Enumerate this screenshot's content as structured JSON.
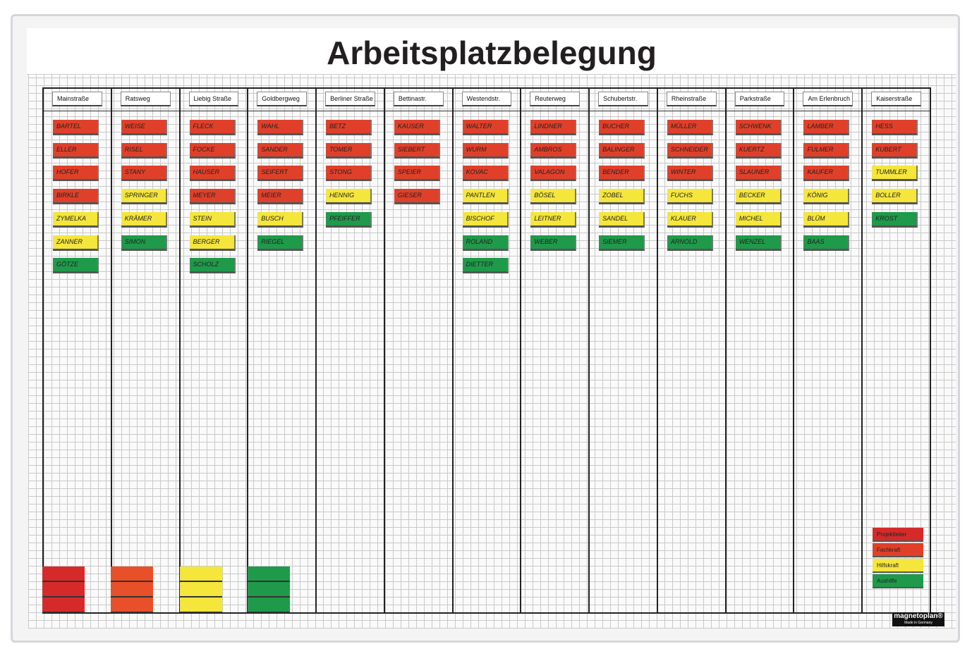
{
  "title": "Arbeitsplatzbelegung",
  "columns": [
    {
      "header": "Mainstraße",
      "cards": [
        {
          "name": "Bartel",
          "color": "#e0402a"
        },
        {
          "name": "Eller",
          "color": "#e0402a"
        },
        {
          "name": "Hofer",
          "color": "#e0402a"
        },
        {
          "name": "Birkle",
          "color": "#e0402a"
        },
        {
          "name": "Zymelka",
          "color": "#f5e63c"
        },
        {
          "name": "Zanner",
          "color": "#f5e63c"
        },
        {
          "name": "Götze",
          "color": "#1f9a4a"
        }
      ]
    },
    {
      "header": "Ratsweg",
      "cards": [
        {
          "name": "Weise",
          "color": "#e0402a"
        },
        {
          "name": "Risel",
          "color": "#e0402a"
        },
        {
          "name": "Stany",
          "color": "#e0402a"
        },
        {
          "name": "Springer",
          "color": "#f5e63c"
        },
        {
          "name": "Krämer",
          "color": "#f5e63c"
        },
        {
          "name": "Simon",
          "color": "#1f9a4a"
        }
      ]
    },
    {
      "header": "Liebig Straße",
      "cards": [
        {
          "name": "Fleck",
          "color": "#e0402a"
        },
        {
          "name": "Focke",
          "color": "#e0402a"
        },
        {
          "name": "Hauser",
          "color": "#e0402a"
        },
        {
          "name": "Meyer",
          "color": "#e0402a"
        },
        {
          "name": "Stein",
          "color": "#f5e63c"
        },
        {
          "name": "Berger",
          "color": "#f5e63c"
        },
        {
          "name": "Scholz",
          "color": "#1f9a4a"
        }
      ]
    },
    {
      "header": "Goldbergweg",
      "cards": [
        {
          "name": "Wahl",
          "color": "#e0402a"
        },
        {
          "name": "Sander",
          "color": "#e0402a"
        },
        {
          "name": "Seifert",
          "color": "#e0402a"
        },
        {
          "name": "Meier",
          "color": "#e0402a"
        },
        {
          "name": "Busch",
          "color": "#f5e63c"
        },
        {
          "name": "Riegel",
          "color": "#1f9a4a"
        }
      ]
    },
    {
      "header": "Berliner Straße",
      "cards": [
        {
          "name": "Betz",
          "color": "#e0402a"
        },
        {
          "name": "Tomer",
          "color": "#e0402a"
        },
        {
          "name": "Stong",
          "color": "#e0402a"
        },
        {
          "name": "Hennig",
          "color": "#f5e63c"
        },
        {
          "name": "Pfeiffer",
          "color": "#1f9a4a"
        }
      ]
    },
    {
      "header": "Bettinastr.",
      "cards": [
        {
          "name": "Kauser",
          "color": "#e0402a"
        },
        {
          "name": "Siebert",
          "color": "#e0402a"
        },
        {
          "name": "Speier",
          "color": "#e0402a"
        },
        {
          "name": "Gieser",
          "color": "#e0402a"
        }
      ]
    },
    {
      "header": "Westendstr.",
      "cards": [
        {
          "name": "Walter",
          "color": "#e0402a"
        },
        {
          "name": "Wurm",
          "color": "#e0402a"
        },
        {
          "name": "Kovac",
          "color": "#e0402a"
        },
        {
          "name": "Pantlen",
          "color": "#f5e63c"
        },
        {
          "name": "Bischof",
          "color": "#f5e63c"
        },
        {
          "name": "Roland",
          "color": "#1f9a4a"
        },
        {
          "name": "Dietter",
          "color": "#1f9a4a"
        }
      ]
    },
    {
      "header": "Reuterweg",
      "cards": [
        {
          "name": "Lindner",
          "color": "#e0402a"
        },
        {
          "name": "Ambros",
          "color": "#e0402a"
        },
        {
          "name": "Valagon",
          "color": "#e0402a"
        },
        {
          "name": "Bösel",
          "color": "#f5e63c"
        },
        {
          "name": "Leitner",
          "color": "#f5e63c"
        },
        {
          "name": "Weber",
          "color": "#1f9a4a"
        }
      ]
    },
    {
      "header": "Schubertstr.",
      "cards": [
        {
          "name": "Bucher",
          "color": "#e0402a"
        },
        {
          "name": "Balinger",
          "color": "#e0402a"
        },
        {
          "name": "Bender",
          "color": "#e0402a"
        },
        {
          "name": "Zobel",
          "color": "#f5e63c"
        },
        {
          "name": "Sandel",
          "color": "#f5e63c"
        },
        {
          "name": "Siemer",
          "color": "#1f9a4a"
        }
      ]
    },
    {
      "header": "Rheinstraße",
      "cards": [
        {
          "name": "Müller",
          "color": "#e0402a"
        },
        {
          "name": "Schneider",
          "color": "#e0402a"
        },
        {
          "name": "Winter",
          "color": "#e0402a"
        },
        {
          "name": "Fuchs",
          "color": "#f5e63c"
        },
        {
          "name": "Klauer",
          "color": "#f5e63c"
        },
        {
          "name": "Arnold",
          "color": "#1f9a4a"
        }
      ]
    },
    {
      "header": "Parkstraße",
      "cards": [
        {
          "name": "Schwenk",
          "color": "#e0402a"
        },
        {
          "name": "Kuertz",
          "color": "#e0402a"
        },
        {
          "name": "Slauner",
          "color": "#e0402a"
        },
        {
          "name": "Becker",
          "color": "#f5e63c"
        },
        {
          "name": "Michel",
          "color": "#f5e63c"
        },
        {
          "name": "Wenzel",
          "color": "#1f9a4a"
        }
      ]
    },
    {
      "header": "Am Erlenbruch",
      "cards": [
        {
          "name": "Lamber",
          "color": "#e0402a"
        },
        {
          "name": "Fulmer",
          "color": "#e0402a"
        },
        {
          "name": "Kaufer",
          "color": "#e0402a"
        },
        {
          "name": "König",
          "color": "#f5e63c"
        },
        {
          "name": "Blüm",
          "color": "#f5e63c"
        },
        {
          "name": "Baas",
          "color": "#1f9a4a"
        }
      ]
    },
    {
      "header": "Kaiserstraße",
      "cards": [
        {
          "name": "Hess",
          "color": "#e0402a"
        },
        {
          "name": "Kubert",
          "color": "#e0402a"
        },
        {
          "name": "Tummler",
          "color": "#f5e63c"
        },
        {
          "name": "Boller",
          "color": "#f5e63c"
        },
        {
          "name": "Krost",
          "color": "#1f9a4a"
        }
      ]
    }
  ],
  "legend": [
    {
      "label": "Projektleiter",
      "color": "#d62a2a"
    },
    {
      "label": "Fachkraft",
      "color": "#e0402a"
    },
    {
      "label": "Hilfskraft",
      "color": "#f5e63c"
    },
    {
      "label": "Aushilfe",
      "color": "#1f9a4a"
    }
  ],
  "brand": {
    "name": "magnetoplan®",
    "subtitle": "Made in Germany"
  }
}
